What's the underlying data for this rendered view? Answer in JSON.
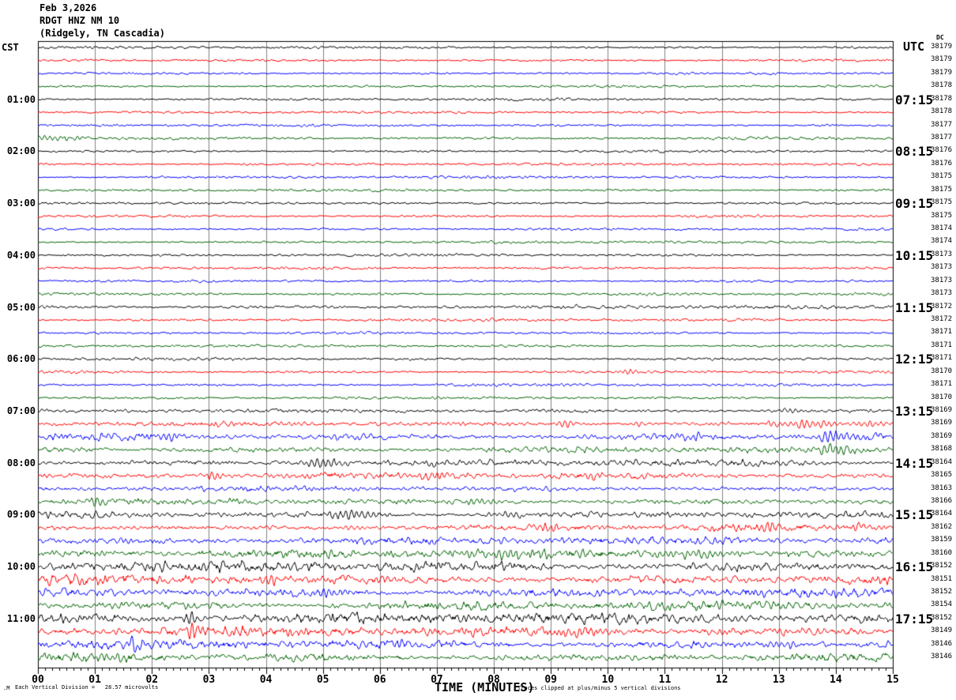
{
  "title": {
    "date": "Feb 3,2026",
    "station": "RDGT HNZ NM 10",
    "location": "(Ridgely, TN Cascadia)"
  },
  "left_axis": {
    "label": "CST"
  },
  "right_axis": {
    "label": "UTC",
    "dc_label": "DC"
  },
  "x_axis": {
    "label": "TIME (MINUTES)",
    "minutes": [
      "00",
      "01",
      "02",
      "03",
      "04",
      "05",
      "06",
      "07",
      "08",
      "09",
      "10",
      "11",
      "12",
      "13",
      "14",
      "15"
    ]
  },
  "footer": {
    "scale_note": "Each Vertical Division =   28.57 microvolts",
    "clip_note": "Traces clipped at plus/minus 5 vertical divisions",
    "corner_mark": ".M"
  },
  "chart_data": {
    "type": "line",
    "subtype": "helicorder-seismogram",
    "x_range_minutes": [
      0,
      15
    ],
    "minutes_per_line": 15,
    "microvolts_per_division": 28.57,
    "clip_divisions": 5,
    "grid": "vertical-minute-lines",
    "grid_color": "#808080",
    "border_color": "#000000",
    "color_cycle": [
      "#000000",
      "#ff0000",
      "#0000ff",
      "#006400"
    ],
    "rows": [
      {
        "dc": 38179,
        "amp": 1.0,
        "spikes": []
      },
      {
        "dc": 38179,
        "amp": 1.0,
        "spikes": []
      },
      {
        "dc": 38179,
        "amp": 1.0,
        "spikes": []
      },
      {
        "dc": 38178,
        "amp": 1.0,
        "spikes": []
      },
      {
        "dc": 38178,
        "amp": 1.0,
        "cst": "01:00",
        "utc": "07:15",
        "spikes": []
      },
      {
        "dc": 38178,
        "amp": 1.0,
        "spikes": []
      },
      {
        "dc": 38177,
        "amp": 1.0,
        "spikes": []
      },
      {
        "dc": 38177,
        "amp": 1.2,
        "spikes": [
          {
            "m": 0.4,
            "a": 3,
            "w": 0.45
          },
          {
            "m": 0.5,
            "a": -6,
            "w": 0.08
          }
        ]
      },
      {
        "dc": 38176,
        "amp": 1.0,
        "cst": "02:00",
        "utc": "08:15",
        "spikes": []
      },
      {
        "dc": 38176,
        "amp": 1.0,
        "spikes": []
      },
      {
        "dc": 38175,
        "amp": 1.1,
        "spikes": []
      },
      {
        "dc": 38175,
        "amp": 1.0,
        "spikes": []
      },
      {
        "dc": 38175,
        "amp": 1.0,
        "cst": "03:00",
        "utc": "09:15",
        "spikes": []
      },
      {
        "dc": 38175,
        "amp": 1.0,
        "spikes": []
      },
      {
        "dc": 38174,
        "amp": 1.0,
        "spikes": []
      },
      {
        "dc": 38174,
        "amp": 1.0,
        "spikes": []
      },
      {
        "dc": 38173,
        "amp": 1.0,
        "cst": "04:00",
        "utc": "10:15",
        "spikes": []
      },
      {
        "dc": 38173,
        "amp": 1.0,
        "spikes": []
      },
      {
        "dc": 38173,
        "amp": 1.0,
        "spikes": []
      },
      {
        "dc": 38173,
        "amp": 1.1,
        "spikes": []
      },
      {
        "dc": 38172,
        "amp": 1.5,
        "cst": "05:00",
        "utc": "11:15",
        "spikes": []
      },
      {
        "dc": 38172,
        "amp": 1.2,
        "spikes": []
      },
      {
        "dc": 38171,
        "amp": 1.0,
        "spikes": []
      },
      {
        "dc": 38171,
        "amp": 1.1,
        "spikes": []
      },
      {
        "dc": 38171,
        "amp": 1.2,
        "cst": "06:00",
        "utc": "12:15",
        "spikes": []
      },
      {
        "dc": 38170,
        "amp": 1.1,
        "spikes": [
          {
            "m": 10.4,
            "a": 3,
            "w": 0.12
          }
        ]
      },
      {
        "dc": 38171,
        "amp": 1.1,
        "spikes": []
      },
      {
        "dc": 38170,
        "amp": 1.0,
        "spikes": []
      },
      {
        "dc": 38169,
        "amp": 1.6,
        "cst": "07:00",
        "utc": "13:15",
        "spikes": [
          {
            "m": 13.2,
            "a": 2,
            "w": 0.3
          }
        ]
      },
      {
        "dc": 38169,
        "amp": 1.9,
        "spikes": [
          {
            "m": 9.25,
            "a": 5,
            "w": 0.15
          },
          {
            "m": 10.5,
            "a": 3,
            "w": 0.12
          },
          {
            "m": 13.4,
            "a": 4,
            "w": 0.6
          },
          {
            "m": 14.6,
            "a": 3,
            "w": 0.25
          }
        ]
      },
      {
        "dc": 38169,
        "amp": 2.6,
        "spikes": [
          {
            "m": 2.3,
            "a": 4,
            "w": 0.3
          },
          {
            "m": 5.3,
            "a": 3,
            "w": 0.2
          },
          {
            "m": 11.4,
            "a": 4,
            "w": 0.4
          },
          {
            "m": 14.0,
            "a": 5,
            "w": 0.35
          }
        ]
      },
      {
        "dc": 38168,
        "amp": 2.4,
        "spikes": [
          {
            "m": 13.9,
            "a": 5,
            "w": 0.4
          }
        ]
      },
      {
        "dc": 38164,
        "amp": 2.5,
        "cst": "08:00",
        "utc": "14:15",
        "spikes": [
          {
            "m": 5.0,
            "a": 5,
            "w": 0.4
          },
          {
            "m": 7.1,
            "a": 3,
            "w": 0.25
          },
          {
            "m": 10.5,
            "a": 3,
            "w": 0.3
          }
        ]
      },
      {
        "dc": 38165,
        "amp": 2.4,
        "spikes": [
          {
            "m": 3.1,
            "a": -4,
            "w": 0.2
          },
          {
            "m": 6.9,
            "a": 4,
            "w": 0.3
          },
          {
            "m": 9.7,
            "a": 3,
            "w": 0.2
          }
        ]
      },
      {
        "dc": 38163,
        "amp": 2.0,
        "spikes": []
      },
      {
        "dc": 38166,
        "amp": 2.4,
        "spikes": [
          {
            "m": 1.0,
            "a": -4,
            "w": 0.2
          },
          {
            "m": 7.8,
            "a": 3,
            "w": 0.3
          }
        ]
      },
      {
        "dc": 38164,
        "amp": 2.5,
        "cst": "09:00",
        "utc": "15:15",
        "spikes": [
          {
            "m": 5.5,
            "a": 4,
            "w": 0.5
          },
          {
            "m": 8.3,
            "a": 3,
            "w": 0.3
          }
        ]
      },
      {
        "dc": 38162,
        "amp": 2.5,
        "spikes": [
          {
            "m": 5.5,
            "a": 3,
            "w": 0.2
          },
          {
            "m": 9.0,
            "a": 3,
            "w": 0.25
          },
          {
            "m": 12.8,
            "a": 4,
            "w": 0.3
          },
          {
            "m": 14.4,
            "a": 4,
            "w": 0.2
          }
        ]
      },
      {
        "dc": 38159,
        "amp": 3.0,
        "spikes": []
      },
      {
        "dc": 38160,
        "amp": 3.4,
        "spikes": [
          {
            "m": 8.0,
            "a": 4,
            "w": 1.0
          },
          {
            "m": 11.5,
            "a": 4,
            "w": 0.8
          }
        ]
      },
      {
        "dc": 38152,
        "amp": 4.0,
        "cst": "10:00",
        "utc": "16:15",
        "spikes": []
      },
      {
        "dc": 38151,
        "amp": 3.8,
        "spikes": [
          {
            "m": 4.05,
            "a": -6,
            "w": 0.15
          }
        ]
      },
      {
        "dc": 38152,
        "amp": 3.4,
        "spikes": [
          {
            "m": 5.2,
            "a": 4,
            "w": 0.3
          }
        ]
      },
      {
        "dc": 38154,
        "amp": 3.4,
        "spikes": []
      },
      {
        "dc": 38152,
        "amp": 4.2,
        "cst": "11:00",
        "utc": "17:15",
        "spikes": [
          {
            "m": 2.7,
            "a": 8,
            "w": 0.12
          }
        ]
      },
      {
        "dc": 38149,
        "amp": 3.8,
        "spikes": [
          {
            "m": 2.75,
            "a": -9,
            "w": 0.15
          },
          {
            "m": 9.5,
            "a": 4,
            "w": 0.3
          }
        ]
      },
      {
        "dc": 38146,
        "amp": 3.4,
        "spikes": [
          {
            "m": 1.7,
            "a": -6,
            "w": 0.15
          },
          {
            "m": 13.2,
            "a": -4,
            "w": 0.2
          }
        ]
      },
      {
        "dc": 38146,
        "amp": 3.2,
        "spikes": [
          {
            "m": 1.3,
            "a": 4,
            "w": 0.3
          }
        ]
      }
    ]
  }
}
